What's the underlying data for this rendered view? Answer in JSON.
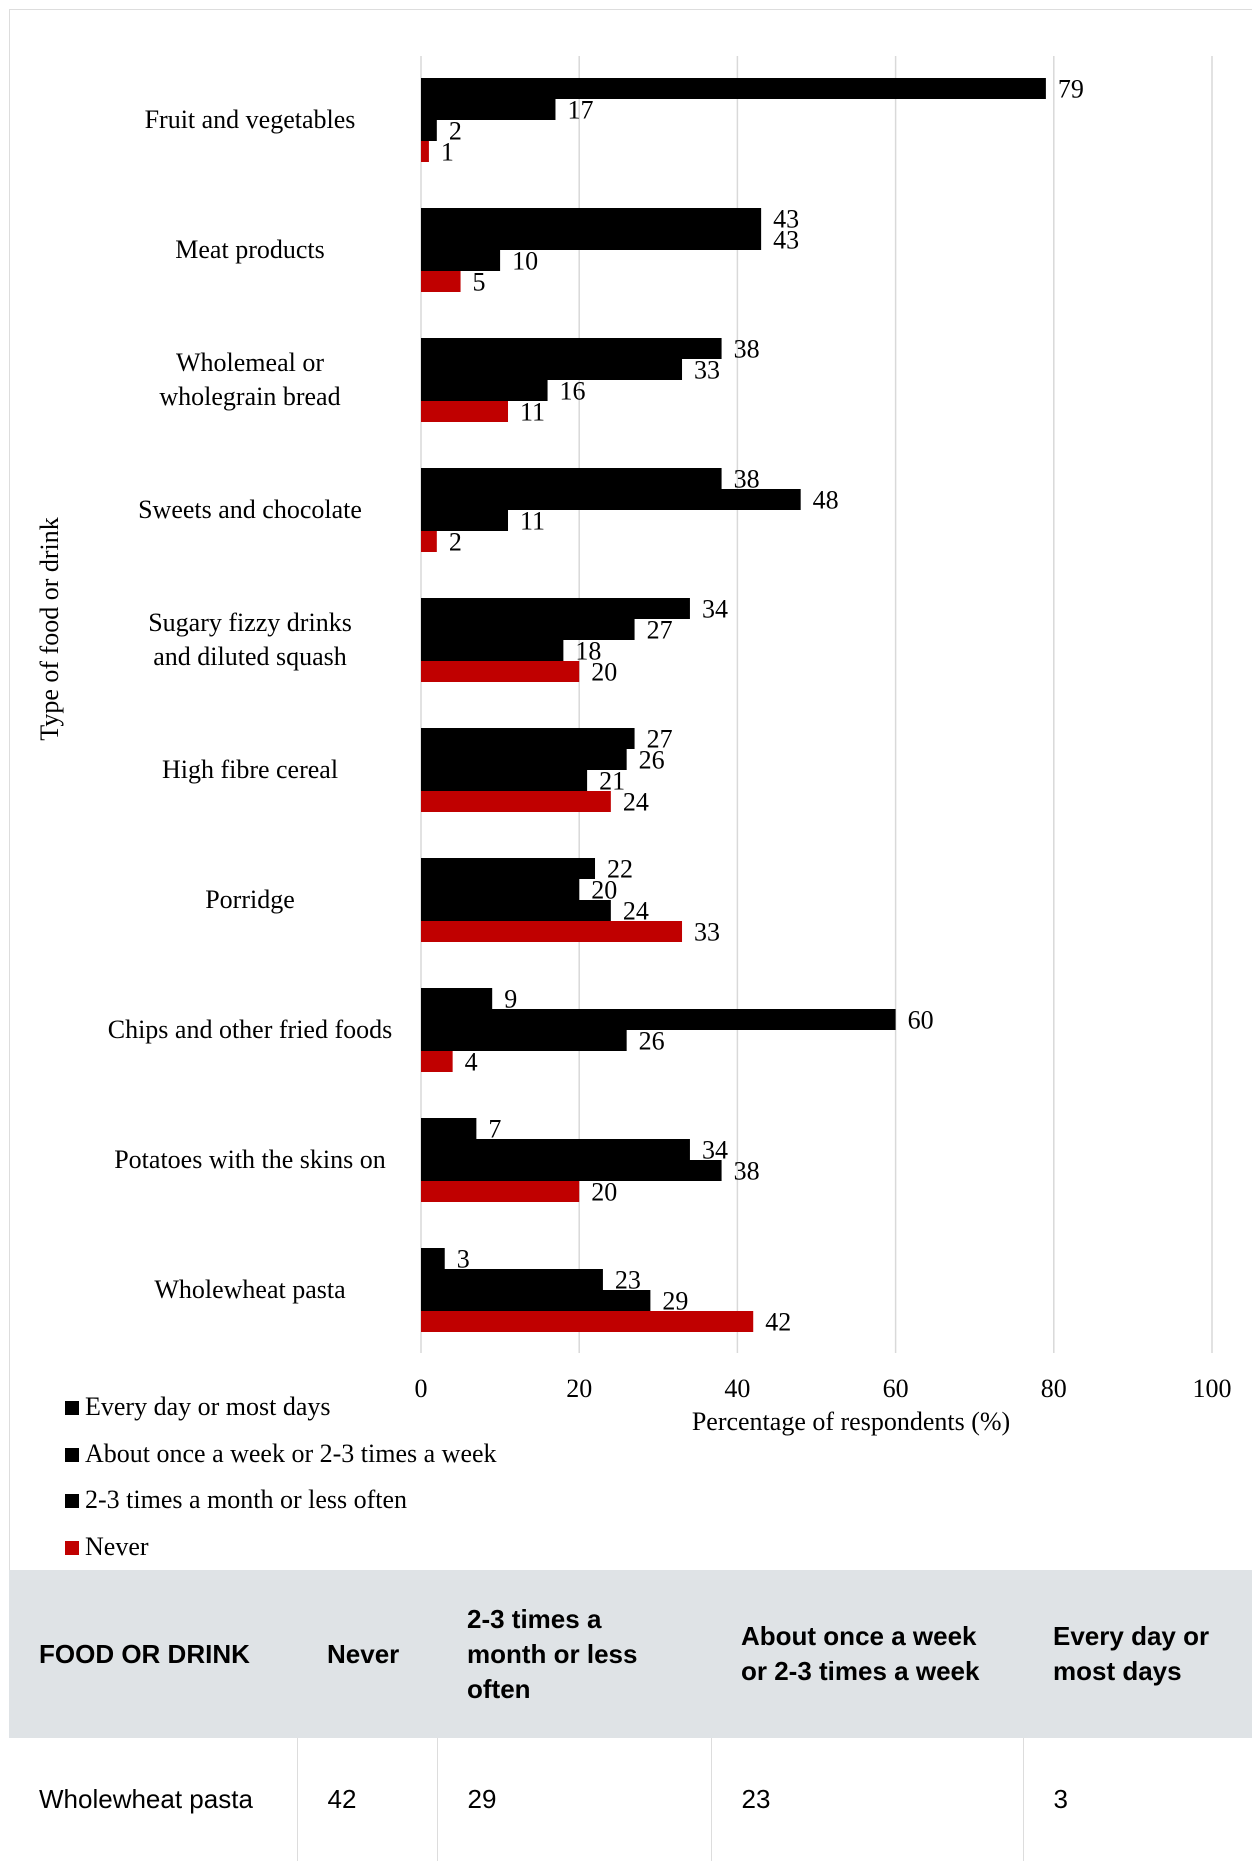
{
  "chart_data": {
    "type": "barh",
    "xlabel": "Percentage of respondents (%)",
    "ylabel": "Type of food or drink",
    "categories": [
      "Fruit and vegetables",
      "Meat products",
      "Wholemeal or\nwholegrain bread",
      "Sweets and chocolate",
      "Sugary fizzy drinks\nand diluted squash",
      "High fibre cereal",
      "Porridge",
      "Chips and other fried foods",
      "Potatoes with the skins on",
      "Wholewheat pasta"
    ],
    "series": [
      {
        "name": "Every day or most days",
        "color": "#000000",
        "values": [
          79,
          43,
          38,
          38,
          34,
          27,
          22,
          9,
          7,
          3
        ]
      },
      {
        "name": "About once a week or 2-3 times a week",
        "color": "#000000",
        "values": [
          17,
          43,
          33,
          48,
          27,
          26,
          20,
          60,
          34,
          23
        ]
      },
      {
        "name": "2-3 times a month or less often",
        "color": "#000000",
        "values": [
          2,
          10,
          16,
          11,
          18,
          21,
          24,
          26,
          38,
          29
        ]
      },
      {
        "name": "Never",
        "color": "#c00000",
        "values": [
          1,
          5,
          11,
          2,
          20,
          24,
          33,
          4,
          20,
          42
        ]
      }
    ],
    "xlim": [
      0,
      100
    ],
    "xticks": [
      0,
      20,
      40,
      60,
      80,
      100
    ],
    "grid": true
  },
  "table": {
    "headers": [
      "FOOD OR DRINK",
      "Never",
      "2-3 times a month or less often",
      "About once a week or 2-3 times a week",
      "Every day or most days"
    ],
    "rows": [
      [
        "Wholewheat pasta",
        42,
        29,
        23,
        3
      ]
    ]
  }
}
